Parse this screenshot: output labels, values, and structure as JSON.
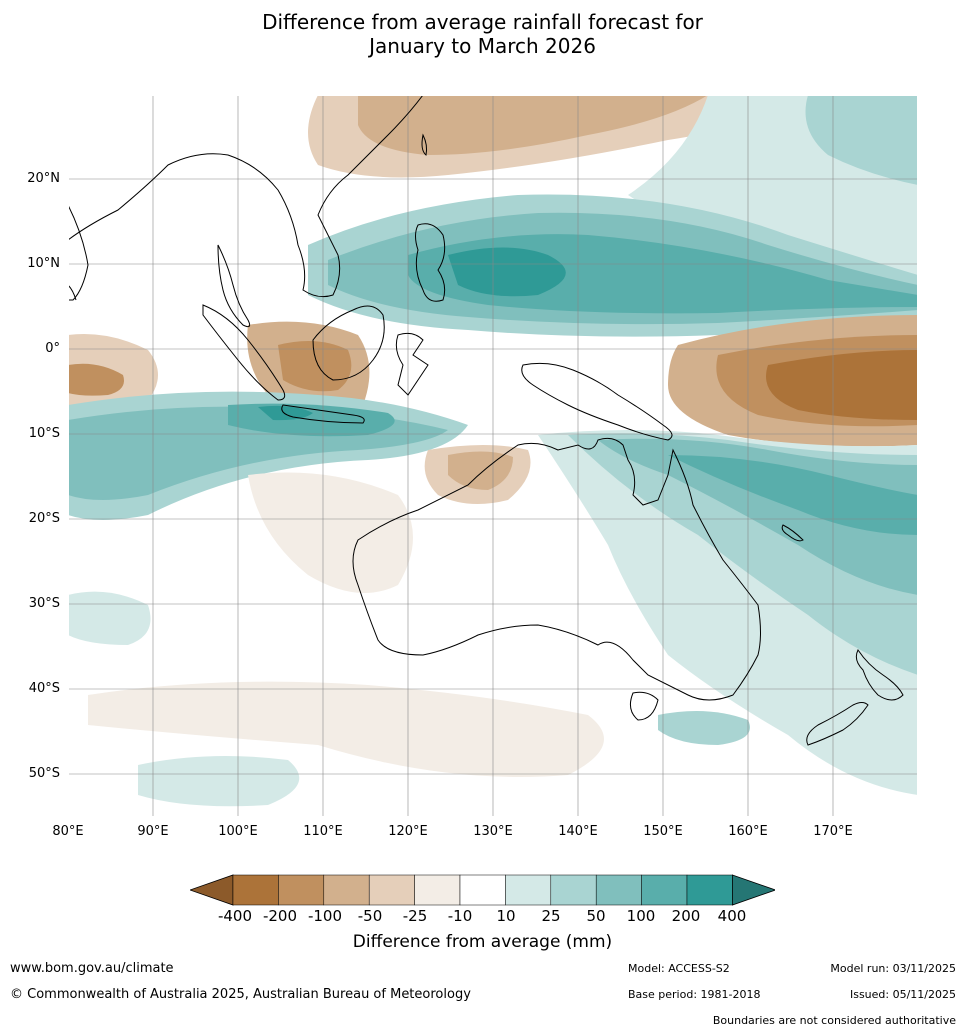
{
  "title": {
    "line1": "Difference from average rainfall forecast for",
    "line2": "January to March 2026"
  },
  "map": {
    "lat_labels": [
      "20°N",
      "10°N",
      "0°",
      "10°S",
      "20°S",
      "30°S",
      "40°S",
      "50°S"
    ],
    "lon_labels": [
      "80°E",
      "90°E",
      "100°E",
      "110°E",
      "120°E",
      "130°E",
      "140°E",
      "150°E",
      "160°E",
      "170°E"
    ],
    "lat_values": [
      20,
      10,
      0,
      -10,
      -20,
      -30,
      -40,
      -50
    ],
    "lon_values": [
      80,
      90,
      100,
      110,
      120,
      130,
      140,
      150,
      160,
      170
    ],
    "lat_range": [
      -55,
      30
    ],
    "lon_range": [
      80,
      180
    ]
  },
  "legend": {
    "title": "Difference from average (mm)",
    "labels": [
      "-400",
      "-200",
      "-100",
      "-50",
      "-25",
      "-10",
      "10",
      "25",
      "50",
      "100",
      "200",
      "400"
    ],
    "colors": [
      "#8c5a2a",
      "#ac7339",
      "#c0905f",
      "#d2b08d",
      "#e5cfba",
      "#f3ede6",
      "#ffffff",
      "#d4e9e7",
      "#a9d4d2",
      "#80bfbd",
      "#59aeab",
      "#2f9a96",
      "#257674"
    ]
  },
  "footer": {
    "url": "www.bom.gov.au/climate",
    "copyright": "© Commonwealth of Australia 2025, Australian Bureau of Meteorology",
    "model": "Model: ACCESS-S2",
    "base_period": "Base period: 1981-2018",
    "model_run": "Model run: 03/11/2025",
    "issued": "Issued: 05/11/2025",
    "disclaimer": "Boundaries are not considered authoritative"
  }
}
